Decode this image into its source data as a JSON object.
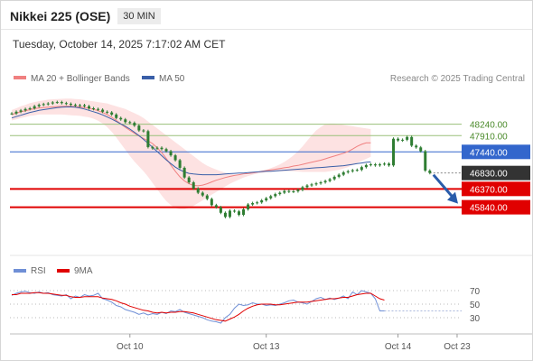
{
  "header": {
    "title": "Nikkei 225 (OSE)",
    "timeframe": "30 MIN",
    "timestamp": "Tuesday, October 14, 2025 7:17:02 AM CET"
  },
  "legend": {
    "ma20_label": "MA 20 + Bollinger Bands",
    "ma50_label": "MA 50",
    "credit": "Research © 2025 Trading Central",
    "rsi_label": "RSI",
    "rsi_ma_label": "9MA"
  },
  "colors": {
    "ma20": "#f08080",
    "bollinger_fill": "#fde2e2",
    "ma50": "#3a5fa8",
    "candle": "#2e7d32",
    "resistance": "#9ac07a",
    "pivot": "#3366cc",
    "support": "#e00000",
    "current": "#333333",
    "arrow": "#2a5caa",
    "rsi": "#6f8fd6",
    "rsi_ma": "#e00000"
  },
  "chart_data": [
    {
      "type": "candlestick",
      "title": "Nikkei 225 (OSE)",
      "xlabel": "",
      "ylabel": "",
      "x_ticks": [
        "Oct 10",
        "Oct 13",
        "Oct 14",
        "Oct 23"
      ],
      "x_tick_index": [
        26,
        56,
        85,
        98
      ],
      "x_count": 100,
      "ylim": [
        44500,
        49300
      ],
      "series": [
        {
          "name": "MA 20 + Bollinger Bands",
          "role": "ma20",
          "values": [
            48520,
            48560,
            48600,
            48630,
            48660,
            48690,
            48710,
            48720,
            48730,
            48740,
            48750,
            48755,
            48760,
            48760,
            48750,
            48740,
            48720,
            48700,
            48670,
            48630,
            48580,
            48520,
            48440,
            48350,
            48250,
            48150,
            48060,
            47980,
            47900,
            47830,
            47760,
            47680,
            47560,
            47420,
            47250,
            47060,
            46880,
            46720,
            46600,
            46520,
            46470,
            46460,
            46480,
            46520,
            46570,
            46620,
            46660,
            46700,
            46730,
            46760,
            46780,
            46800,
            46810,
            46830,
            46850,
            46880,
            46900,
            46920,
            46940,
            46960,
            46980,
            47000,
            47030,
            47050,
            47080,
            47110,
            47140,
            47170,
            47200,
            47240,
            47280,
            47320,
            47360,
            47400,
            47450,
            47520,
            47600,
            47660,
            47700,
            47700
          ]
        },
        {
          "name": "MA 50",
          "role": "ma50",
          "values": [
            48420,
            48460,
            48500,
            48540,
            48580,
            48610,
            48640,
            48660,
            48680,
            48700,
            48720,
            48730,
            48740,
            48740,
            48730,
            48710,
            48680,
            48640,
            48600,
            48560,
            48510,
            48450,
            48390,
            48320,
            48250,
            48180,
            48100,
            48010,
            47910,
            47800,
            47690,
            47570,
            47450,
            47330,
            47210,
            47100,
            47000,
            46920,
            46860,
            46820,
            46800,
            46790,
            46780,
            46780,
            46780,
            46780,
            46790,
            46800,
            46810,
            46820,
            46830,
            46830,
            46840,
            46850,
            46860,
            46870,
            46880,
            46880,
            46890,
            46900,
            46910,
            46920,
            46930,
            46940,
            46950,
            46960,
            46970,
            46980,
            46990,
            47000,
            47010,
            47020,
            47030,
            47040,
            47060,
            47080,
            47100,
            47120,
            47140,
            47150
          ]
        },
        {
          "name": "Bollinger Upper",
          "role": "bb_upper",
          "values": [
            48650,
            48700,
            48760,
            48800,
            48850,
            48880,
            48910,
            48930,
            48950,
            48960,
            48970,
            48975,
            48980,
            48980,
            48970,
            48960,
            48940,
            48920,
            48900,
            48880,
            48860,
            48840,
            48800,
            48760,
            48720,
            48680,
            48620,
            48560,
            48500,
            48420,
            48320,
            48220,
            48120,
            48020,
            47920,
            47820,
            47720,
            47620,
            47520,
            47420,
            47320,
            47220,
            47120,
            47040,
            46980,
            46930,
            46880,
            46840,
            46800,
            46780,
            46770,
            46770,
            46780,
            46800,
            46830,
            46870,
            46920,
            46970,
            47020,
            47080,
            47150,
            47240,
            47340,
            47460,
            47600,
            47760,
            47920,
            48060,
            48160,
            48240,
            48260,
            48260,
            48240,
            48220,
            48200,
            48180,
            48160,
            48140,
            48120,
            48100
          ]
        },
        {
          "name": "Bollinger Lower",
          "role": "bb_lower",
          "values": [
            48350,
            48380,
            48420,
            48450,
            48480,
            48500,
            48520,
            48520,
            48520,
            48520,
            48520,
            48520,
            48510,
            48500,
            48490,
            48480,
            48460,
            48440,
            48400,
            48340,
            48260,
            48160,
            48020,
            47860,
            47680,
            47500,
            47320,
            47160,
            47020,
            46880,
            46720,
            46540,
            46360,
            46180,
            46020,
            45900,
            45820,
            45780,
            45780,
            45820,
            45880,
            45960,
            46040,
            46120,
            46200,
            46280,
            46360,
            46440,
            46520,
            46580,
            46640,
            46700,
            46740,
            46780,
            46810,
            46830,
            46850,
            46860,
            46870,
            46880,
            46880,
            46880,
            46880,
            46870,
            46860,
            46860,
            46860,
            46860,
            46860,
            46860,
            46880,
            46900,
            46920,
            46960,
            47000,
            47060,
            47120,
            47180,
            47240,
            47300
          ]
        },
        {
          "name": "Price",
          "role": "close",
          "values": [
            48550,
            48600,
            48640,
            48680,
            48700,
            48760,
            48800,
            48820,
            48840,
            48870,
            48880,
            48850,
            48830,
            48800,
            48780,
            48790,
            48760,
            48700,
            48680,
            48660,
            48600,
            48580,
            48520,
            48420,
            48380,
            48300,
            48280,
            48200,
            48060,
            48040,
            47580,
            47540,
            47560,
            47520,
            47460,
            47340,
            47200,
            46980,
            46700,
            46560,
            46380,
            46260,
            46180,
            46080,
            45900,
            45840,
            45680,
            45560,
            45740,
            45720,
            45620,
            45780,
            45920,
            45960,
            45980,
            46040,
            46100,
            46160,
            46220,
            46260,
            46310,
            46290,
            46300,
            46340,
            46420,
            46470,
            46500,
            46530,
            46560,
            46600,
            46650,
            46720,
            46780,
            46850,
            46880,
            46910,
            46920,
            47000,
            47060,
            47080,
            47050,
            47080,
            47100,
            47050,
            47820,
            47770,
            47790,
            47870,
            47620,
            47570,
            47460,
            46900,
            46830
          ]
        }
      ],
      "levels": [
        {
          "label": "48240.00",
          "value": 48240,
          "kind": "resistance"
        },
        {
          "label": "47910.00",
          "value": 47910,
          "kind": "resistance"
        },
        {
          "label": "47440.00",
          "value": 47440,
          "kind": "pivot"
        },
        {
          "label": "46830.00",
          "value": 46830,
          "kind": "current"
        },
        {
          "label": "46370.00",
          "value": 46370,
          "kind": "support"
        },
        {
          "label": "45840.00",
          "value": 45840,
          "kind": "support"
        }
      ]
    },
    {
      "type": "line",
      "title": "RSI",
      "xlabel": "",
      "ylabel": "",
      "ylim": [
        10,
        90
      ],
      "y_ticks": [
        "70",
        "50",
        "30"
      ],
      "series": [
        {
          "name": "RSI",
          "values": [
            63,
            66,
            68,
            69,
            67,
            66,
            68,
            66,
            67,
            64,
            63,
            62,
            64,
            58,
            62,
            60,
            64,
            62,
            63,
            66,
            58,
            56,
            53,
            48,
            46,
            42,
            40,
            38,
            35,
            37,
            34,
            36,
            35,
            38,
            36,
            40,
            39,
            42,
            38,
            36,
            34,
            32,
            30,
            27,
            25,
            24,
            22,
            30,
            35,
            44,
            50,
            48,
            49,
            52,
            50,
            50,
            48,
            49,
            48,
            50,
            52,
            55,
            56,
            53,
            52,
            50,
            54,
            58,
            60,
            57,
            59,
            57,
            59,
            62,
            58,
            68,
            64,
            70,
            68,
            66,
            58,
            40,
            40
          ]
        },
        {
          "name": "9MA",
          "values": [
            64,
            64,
            66,
            66,
            66,
            67,
            67,
            66,
            66,
            65,
            64,
            63,
            63,
            61,
            60,
            60,
            61,
            61,
            61,
            61,
            59,
            58,
            57,
            55,
            52,
            50,
            47,
            45,
            43,
            41,
            40,
            38,
            37,
            38,
            37,
            38,
            38,
            39,
            39,
            38,
            37,
            35,
            33,
            31,
            29,
            27,
            26,
            25,
            28,
            31,
            35,
            40,
            44,
            47,
            49,
            50,
            50,
            50,
            49,
            49,
            50,
            51,
            52,
            53,
            53,
            53,
            54,
            55,
            56,
            57,
            58,
            58,
            59,
            60,
            60,
            62,
            64,
            65,
            66,
            66,
            62,
            58,
            56
          ]
        }
      ]
    }
  ]
}
